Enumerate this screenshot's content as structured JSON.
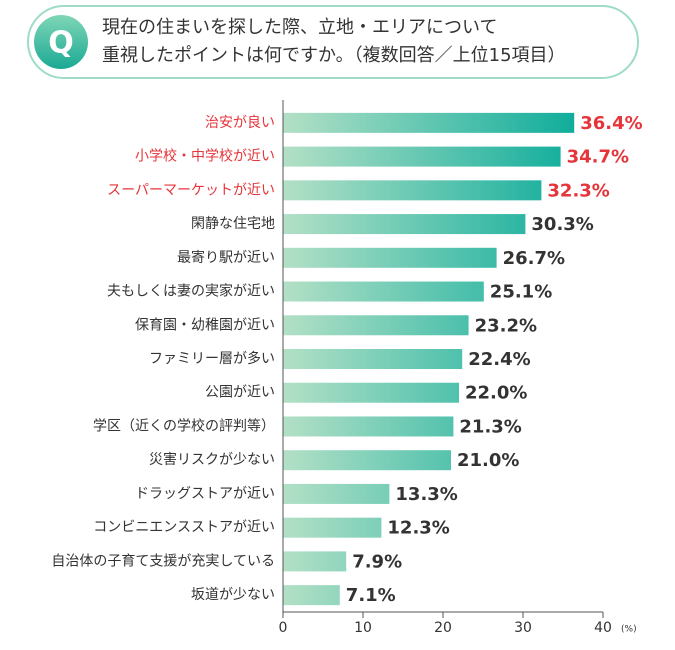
{
  "q_label": "Q",
  "chart_data": {
    "type": "bar",
    "orientation": "horizontal",
    "title_lines": [
      "現在の住まいを探した際、立地・エリアについて",
      "重視したポイントは何ですか。（複数回答／上位15項目）"
    ],
    "categories": [
      "治安が良い",
      "小学校・中学校が近い",
      "スーパーマーケットが近い",
      "閑静な住宅地",
      "最寄り駅が近い",
      "夫もしくは妻の実家が近い",
      "保育園・幼稚園が近い",
      "ファミリー層が多い",
      "公園が近い",
      "学区（近くの学校の評判等）",
      "災害リスクが少ない",
      "ドラッグストアが近い",
      "コンビニエンスストアが近い",
      "自治体の子育て支援が充実している",
      "坂道が少ない"
    ],
    "values": [
      36.4,
      34.7,
      32.3,
      30.3,
      26.7,
      25.1,
      23.2,
      22.4,
      22.0,
      21.3,
      21.0,
      13.3,
      12.3,
      7.9,
      7.1
    ],
    "value_labels": [
      "36.4%",
      "34.7%",
      "32.3%",
      "30.3%",
      "26.7%",
      "25.1%",
      "23.2%",
      "22.4%",
      "22.0%",
      "21.3%",
      "21.0%",
      "13.3%",
      "12.3%",
      "7.9%",
      "7.1%"
    ],
    "highlighted": [
      true,
      true,
      true,
      false,
      false,
      false,
      false,
      false,
      false,
      false,
      false,
      false,
      false,
      false,
      false
    ],
    "highlight_color": "#e5343a",
    "label_color": "#333333",
    "bar_colors": [
      "#b3e0c6",
      "#10ad9c"
    ],
    "xlim": [
      0,
      40
    ],
    "xticks": [
      0,
      10,
      20,
      30,
      40
    ],
    "x_unit": "(%)"
  }
}
